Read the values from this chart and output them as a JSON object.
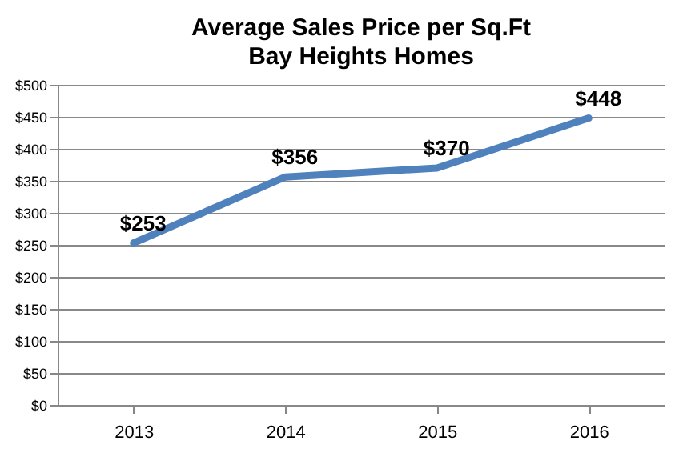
{
  "chart_data": {
    "type": "line",
    "title": "Average Sales Price per Sq.Ft",
    "subtitle": "Bay Heights Homes",
    "categories": [
      "2013",
      "2014",
      "2015",
      "2016"
    ],
    "series": [
      {
        "color": "#4f81bd",
        "values": [
          253,
          356,
          370,
          448
        ],
        "value_labels": [
          "$253",
          "$356",
          "$370",
          "$448"
        ]
      }
    ],
    "ylim": [
      0,
      500
    ],
    "yticks": [
      {
        "value": 0,
        "label": "$0"
      },
      {
        "value": 50,
        "label": "$50"
      },
      {
        "value": 100,
        "label": "$100"
      },
      {
        "value": 150,
        "label": "$150"
      },
      {
        "value": 200,
        "label": "$200"
      },
      {
        "value": 250,
        "label": "$250"
      },
      {
        "value": 300,
        "label": "$300"
      },
      {
        "value": 350,
        "label": "$350"
      },
      {
        "value": 400,
        "label": "$400"
      },
      {
        "value": 450,
        "label": "$450"
      },
      {
        "value": 500,
        "label": "$500"
      }
    ],
    "grid": "y",
    "marker": "none",
    "line_style": "solid"
  }
}
